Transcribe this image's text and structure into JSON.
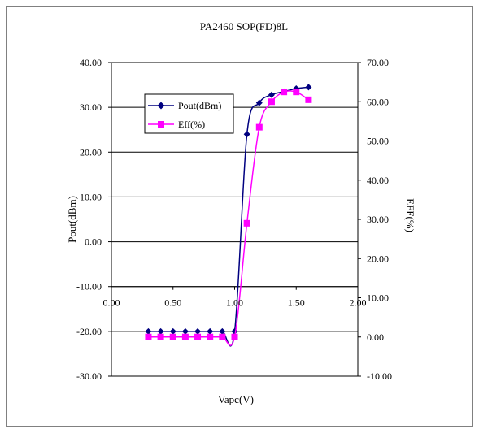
{
  "chart_data": {
    "type": "line",
    "title": "PA2460 SOP(FD)8L",
    "xlabel": "Vapc(V)",
    "ylabel": "Pout(dBm)",
    "y2label": "EFF(%)",
    "xlim": [
      0,
      2
    ],
    "ylim": [
      -30,
      40
    ],
    "y2lim": [
      -10,
      70
    ],
    "x_ticks": [
      "0.00",
      "0.50",
      "1.00",
      "1.50",
      "2.00"
    ],
    "y_ticks": [
      "40.00",
      "30.00",
      "20.00",
      "10.00",
      "0.00",
      "-10.00",
      "-20.00",
      "-30.00"
    ],
    "y2_ticks": [
      "70.00",
      "60.00",
      "50.00",
      "40.00",
      "30.00",
      "20.00",
      "10.00",
      "0.00",
      "-10.00"
    ],
    "grid": "horizontal",
    "legend_position": "top-left",
    "series": [
      {
        "name": "Pout(dBm)",
        "axis": "left",
        "color": "#000080",
        "marker": "diamond",
        "x": [
          0.3,
          0.4,
          0.5,
          0.6,
          0.7,
          0.8,
          0.9,
          1.0,
          1.1,
          1.2,
          1.3,
          1.4,
          1.5,
          1.6
        ],
        "values": [
          -20,
          -20,
          -20,
          -20,
          -20,
          -20,
          -20,
          -20,
          24,
          31,
          32.8,
          33.5,
          34.2,
          34.5
        ]
      },
      {
        "name": "Eff(%)",
        "axis": "right",
        "color": "#ff00ff",
        "marker": "square",
        "x": [
          0.3,
          0.4,
          0.5,
          0.6,
          0.7,
          0.8,
          0.9,
          1.0,
          1.1,
          1.2,
          1.3,
          1.4,
          1.5,
          1.6
        ],
        "values": [
          0,
          0,
          0,
          0,
          0,
          0,
          0,
          0,
          29,
          53.5,
          60,
          62.5,
          62.5,
          60.5
        ]
      }
    ]
  }
}
